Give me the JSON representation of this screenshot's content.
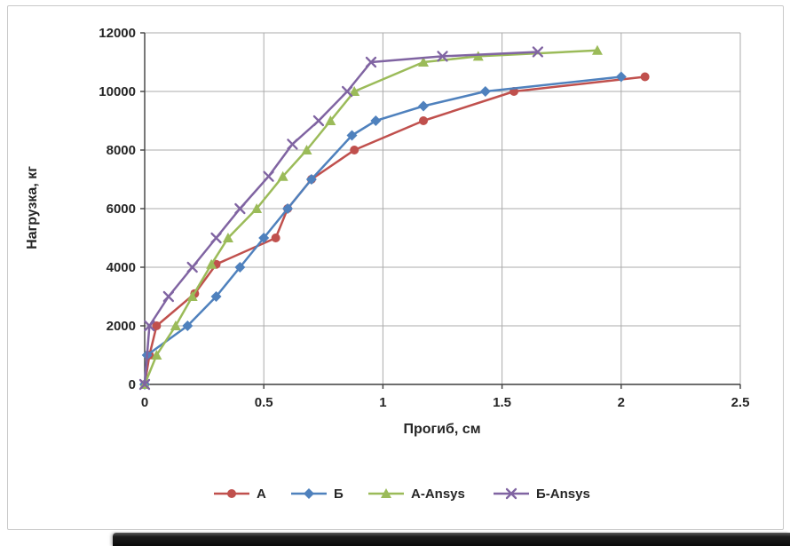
{
  "chart_data": {
    "type": "line",
    "title": "",
    "xlabel": "Прогиб, см",
    "ylabel": "Нагрузка, кг",
    "xlim": [
      0,
      2.5
    ],
    "ylim": [
      0,
      12000
    ],
    "xticks": [
      "0",
      "0.5",
      "1",
      "1.5",
      "2",
      "2.5"
    ],
    "xtick_values": [
      0,
      0.5,
      1,
      1.5,
      2,
      2.5
    ],
    "yticks": [
      "0",
      "2000",
      "4000",
      "6000",
      "8000",
      "10000",
      "12000"
    ],
    "ytick_values": [
      0,
      2000,
      4000,
      6000,
      8000,
      10000,
      12000
    ],
    "grid": true,
    "legend_position": "bottom",
    "axis_color": "#3f3f3f",
    "grid_color": "#ababab",
    "text_color": "#262626",
    "series": [
      {
        "name": "А",
        "color": "#C0504D",
        "marker": "circle",
        "points": [
          [
            0,
            0
          ],
          [
            0.02,
            1000
          ],
          [
            0.05,
            2000
          ],
          [
            0.21,
            3100
          ],
          [
            0.3,
            4100
          ],
          [
            0.55,
            5000
          ],
          [
            0.6,
            6000
          ],
          [
            0.7,
            7000
          ],
          [
            0.88,
            8000
          ],
          [
            1.17,
            9000
          ],
          [
            1.55,
            10000
          ],
          [
            2.1,
            10500
          ]
        ]
      },
      {
        "name": "Б",
        "color": "#4F81BD",
        "marker": "diamond",
        "points": [
          [
            0,
            0
          ],
          [
            0.01,
            1000
          ],
          [
            0.18,
            2000
          ],
          [
            0.3,
            3000
          ],
          [
            0.4,
            4000
          ],
          [
            0.5,
            5000
          ],
          [
            0.6,
            6000
          ],
          [
            0.7,
            7000
          ],
          [
            0.87,
            8500
          ],
          [
            0.97,
            9000
          ],
          [
            1.17,
            9500
          ],
          [
            1.43,
            10000
          ],
          [
            2.0,
            10500
          ]
        ]
      },
      {
        "name": "А-Ansys",
        "color": "#9BBB59",
        "marker": "triangle",
        "points": [
          [
            0,
            0
          ],
          [
            0.05,
            1000
          ],
          [
            0.13,
            2000
          ],
          [
            0.2,
            3000
          ],
          [
            0.28,
            4100
          ],
          [
            0.35,
            5000
          ],
          [
            0.47,
            6000
          ],
          [
            0.58,
            7100
          ],
          [
            0.68,
            8000
          ],
          [
            0.78,
            9000
          ],
          [
            0.88,
            10000
          ],
          [
            1.17,
            11000
          ],
          [
            1.4,
            11200
          ],
          [
            1.9,
            11400
          ]
        ]
      },
      {
        "name": "Б-Ansys",
        "color": "#8064A2",
        "marker": "x",
        "points": [
          [
            0,
            0
          ],
          [
            0.02,
            2000
          ],
          [
            0.1,
            3000
          ],
          [
            0.2,
            4000
          ],
          [
            0.3,
            5000
          ],
          [
            0.4,
            6000
          ],
          [
            0.52,
            7100
          ],
          [
            0.62,
            8200
          ],
          [
            0.73,
            9000
          ],
          [
            0.85,
            10000
          ],
          [
            0.95,
            11000
          ],
          [
            1.25,
            11200
          ],
          [
            1.65,
            11350
          ]
        ]
      }
    ]
  }
}
